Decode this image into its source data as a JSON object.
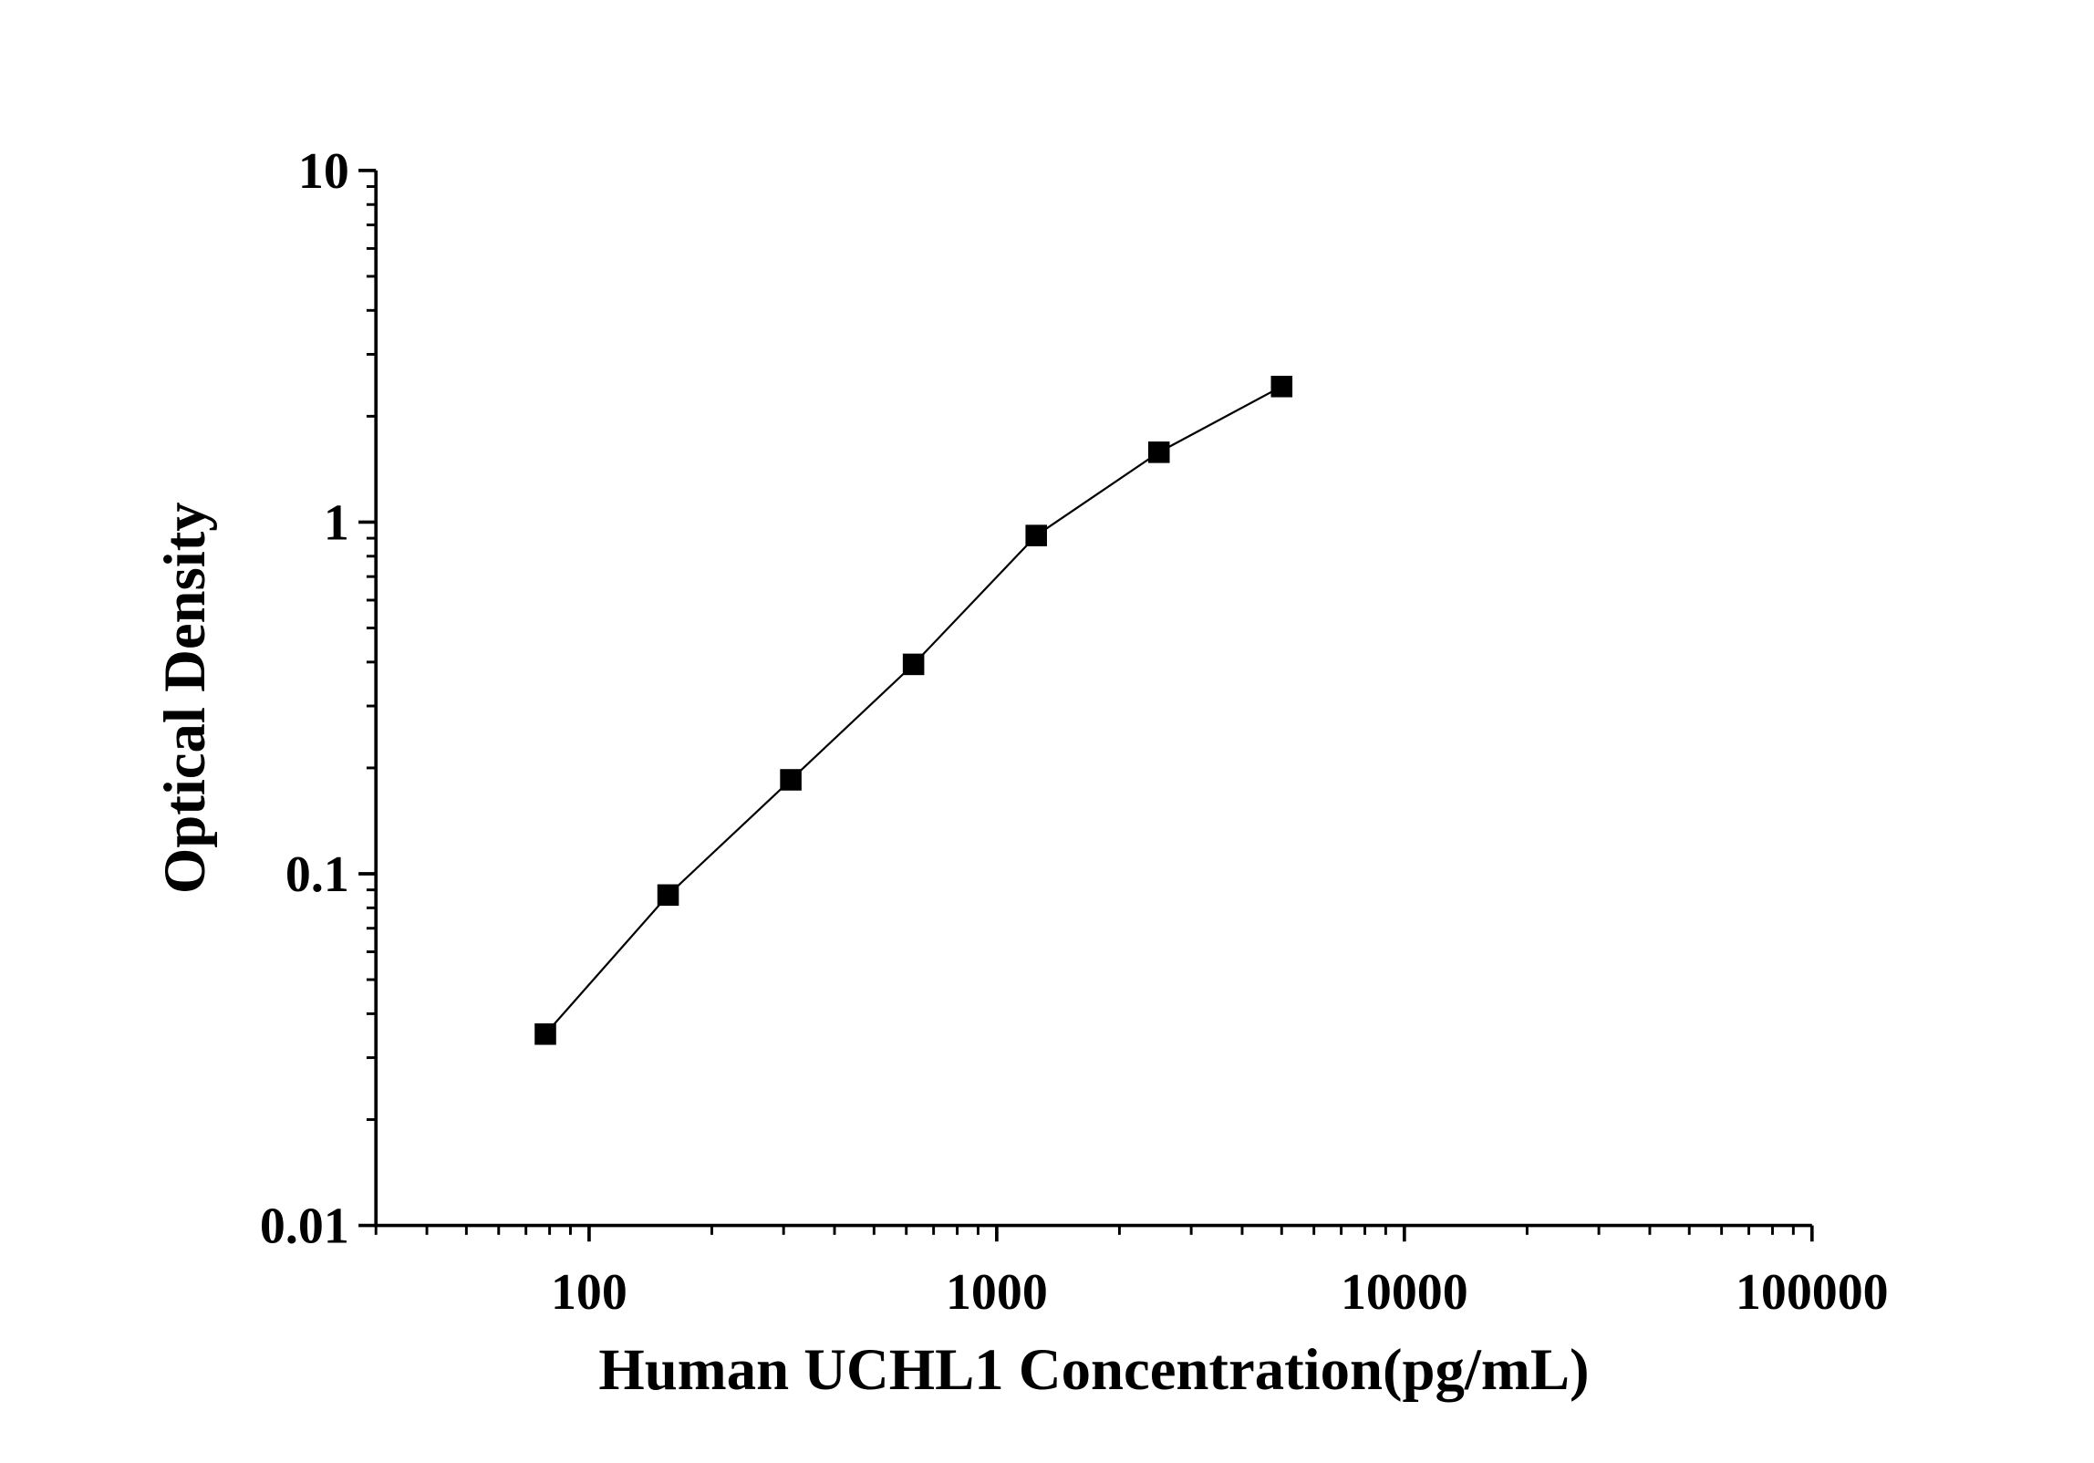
{
  "chart_data": {
    "type": "line",
    "title": "",
    "xlabel": "Human UCHL1 Concentration(pg/mL)",
    "ylabel": "Optical Density",
    "xscale": "log",
    "yscale": "log",
    "xlim": [
      30,
      100000
    ],
    "ylim": [
      0.01,
      10
    ],
    "xticks": [
      100,
      1000,
      10000,
      100000
    ],
    "xtick_labels": [
      "100",
      "1000",
      "10000",
      "100000"
    ],
    "yticks": [
      0.01,
      0.1,
      1,
      10
    ],
    "ytick_labels": [
      "0.01",
      "0.1",
      "1",
      "10"
    ],
    "grid": false,
    "marker": "square",
    "color": "#000000",
    "series": [
      {
        "x": [
          78.125,
          156.25,
          312.5,
          625,
          1250,
          2500,
          5000
        ],
        "y": [
          0.035,
          0.087,
          0.185,
          0.394,
          0.916,
          1.58,
          2.43
        ]
      }
    ]
  }
}
